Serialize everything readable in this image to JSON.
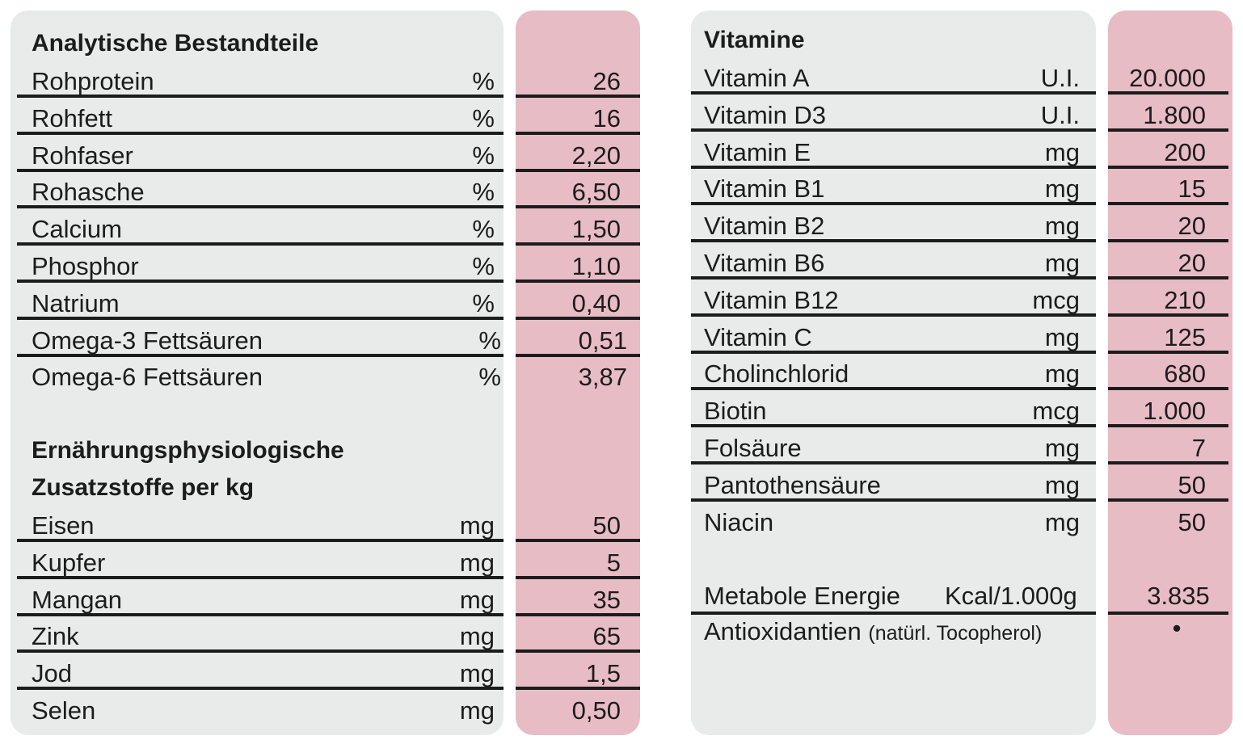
{
  "left": {
    "heading": "Analytische Bestandteile",
    "rows": [
      {
        "name": "Rohprotein",
        "unit": "%",
        "value": "26"
      },
      {
        "name": "Rohfett",
        "unit": "%",
        "value": "16"
      },
      {
        "name": "Rohfaser",
        "unit": "%",
        "value": "2,20"
      },
      {
        "name": "Rohasche",
        "unit": "%",
        "value": "6,50"
      },
      {
        "name": "Calcium",
        "unit": "%",
        "value": "1,50"
      },
      {
        "name": "Phosphor",
        "unit": "%",
        "value": "1,10"
      },
      {
        "name": "Natrium",
        "unit": "%",
        "value": "0,40"
      },
      {
        "name": "Omega-3 Fettsäuren",
        "unit": "%",
        "value": "0,51"
      },
      {
        "name": "Omega-6 Fettsäuren",
        "unit": "%",
        "value": "3,87"
      }
    ],
    "heading2_line1": "Ernährungsphysiologische",
    "heading2_line2": "Zusatzstoffe per kg",
    "rows2": [
      {
        "name": "Eisen",
        "unit": "mg",
        "value": "50"
      },
      {
        "name": "Kupfer",
        "unit": "mg",
        "value": "5"
      },
      {
        "name": "Mangan",
        "unit": "mg",
        "value": "35"
      },
      {
        "name": "Zink",
        "unit": "mg",
        "value": "65"
      },
      {
        "name": "Jod",
        "unit": "mg",
        "value": "1,5"
      },
      {
        "name": "Selen",
        "unit": "mg",
        "value": "0,50"
      }
    ]
  },
  "right": {
    "heading": "Vitamine",
    "rows": [
      {
        "name": "Vitamin A",
        "unit": "U.I.",
        "value": "20.000"
      },
      {
        "name": "Vitamin D3",
        "unit": "U.I.",
        "value": "1.800"
      },
      {
        "name": "Vitamin E",
        "unit": "mg",
        "value": "200"
      },
      {
        "name": "Vitamin B1",
        "unit": "mg",
        "value": "15"
      },
      {
        "name": "Vitamin B2",
        "unit": "mg",
        "value": "20"
      },
      {
        "name": "Vitamin B6",
        "unit": "mg",
        "value": "20"
      },
      {
        "name": "Vitamin B12",
        "unit": "mcg",
        "value": "210"
      },
      {
        "name": "Vitamin C",
        "unit": "mg",
        "value": "125"
      },
      {
        "name": "Cholinchlorid",
        "unit": "mg",
        "value": "680"
      },
      {
        "name": "Biotin",
        "unit": "mcg",
        "value": "1.000"
      },
      {
        "name": "Folsäure",
        "unit": "mg",
        "value": "7"
      },
      {
        "name": "Pantothensäure",
        "unit": "mg",
        "value": "50"
      },
      {
        "name": "Niacin",
        "unit": "mg",
        "value": "50"
      }
    ],
    "energy": {
      "name": "Metabole Energie",
      "unit": "Kcal/1.000g",
      "value": "3.835"
    },
    "antioxidant": {
      "name": "Antioxidantien",
      "note": "(natürl. Tocopherol)",
      "value": "•"
    }
  }
}
